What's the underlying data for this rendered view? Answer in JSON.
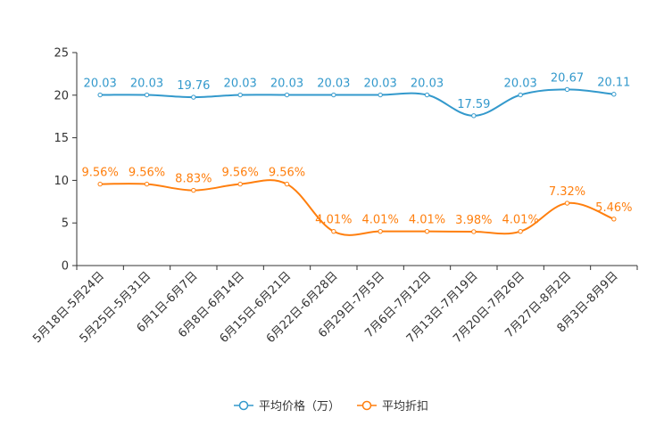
{
  "chart_data": {
    "type": "line",
    "title": "",
    "xlabel": "",
    "ylabel": "",
    "ylim": [
      0,
      25
    ],
    "yticks": [
      "0",
      "5",
      "10",
      "15",
      "20",
      "25"
    ],
    "categories": [
      "5月18日-5月24日",
      "5月25日-5月31日",
      "6月1日-6月7日",
      "6月8日-6月14日",
      "6月15日-6月21日",
      "6月22日-6月28日",
      "6月29日-7月5日",
      "7月6日-7月12日",
      "7月13日-7月19日",
      "7月20日-7月26日",
      "7月27日-8月2日",
      "8月3日-8月9日"
    ],
    "series": [
      {
        "name": "平均价格（万）",
        "color": "#3399cc",
        "values": [
          20.03,
          20.03,
          19.76,
          20.03,
          20.03,
          20.03,
          20.03,
          20.03,
          17.59,
          20.03,
          20.67,
          20.11
        ],
        "labels": [
          "20.03",
          "20.03",
          "19.76",
          "20.03",
          "20.03",
          "20.03",
          "20.03",
          "20.03",
          "17.59",
          "20.03",
          "20.67",
          "20.11"
        ]
      },
      {
        "name": "平均折扣",
        "color": "#ff7f0e",
        "values": [
          9.56,
          9.56,
          8.83,
          9.56,
          9.56,
          4.01,
          4.01,
          4.01,
          3.98,
          4.01,
          7.32,
          5.46
        ],
        "labels": [
          "9.56%",
          "9.56%",
          "8.83%",
          "9.56%",
          "9.56%",
          "4.01%",
          "4.01%",
          "4.01%",
          "3.98%",
          "4.01%",
          "7.32%",
          "5.46%"
        ]
      }
    ],
    "legend_position": "bottom-center",
    "grid": false
  }
}
